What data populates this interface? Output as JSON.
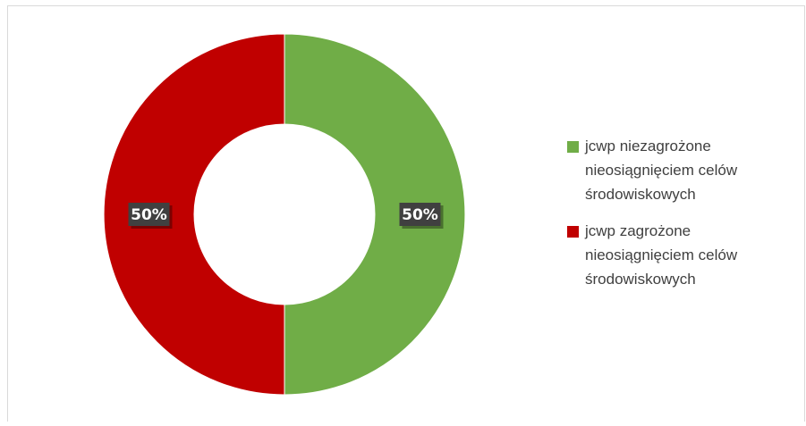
{
  "chart_data": {
    "type": "pie",
    "variant": "donut",
    "title": "",
    "slices": [
      {
        "label": "jcwp niezagrożone nieosiągnięciem celów środowiskowych",
        "value": 50,
        "display": "50%",
        "color": "#70ad47"
      },
      {
        "label": "jcwp zagrożone nieosiągnięciem celów środowiskowych",
        "value": 50,
        "display": "50%",
        "color": "#c00000"
      }
    ],
    "legend_position": "right",
    "data_label_box_color": "#404040"
  },
  "legend": {
    "items": [
      {
        "label_lines": [
          "jcwp niezagrożone",
          "nieosiągnięciem celów",
          "środowiskowych"
        ],
        "color": "#70ad47"
      },
      {
        "label_lines": [
          "jcwp zagrożone",
          "nieosiągnięciem celów",
          "środowiskowych"
        ],
        "color": "#c00000"
      }
    ]
  }
}
